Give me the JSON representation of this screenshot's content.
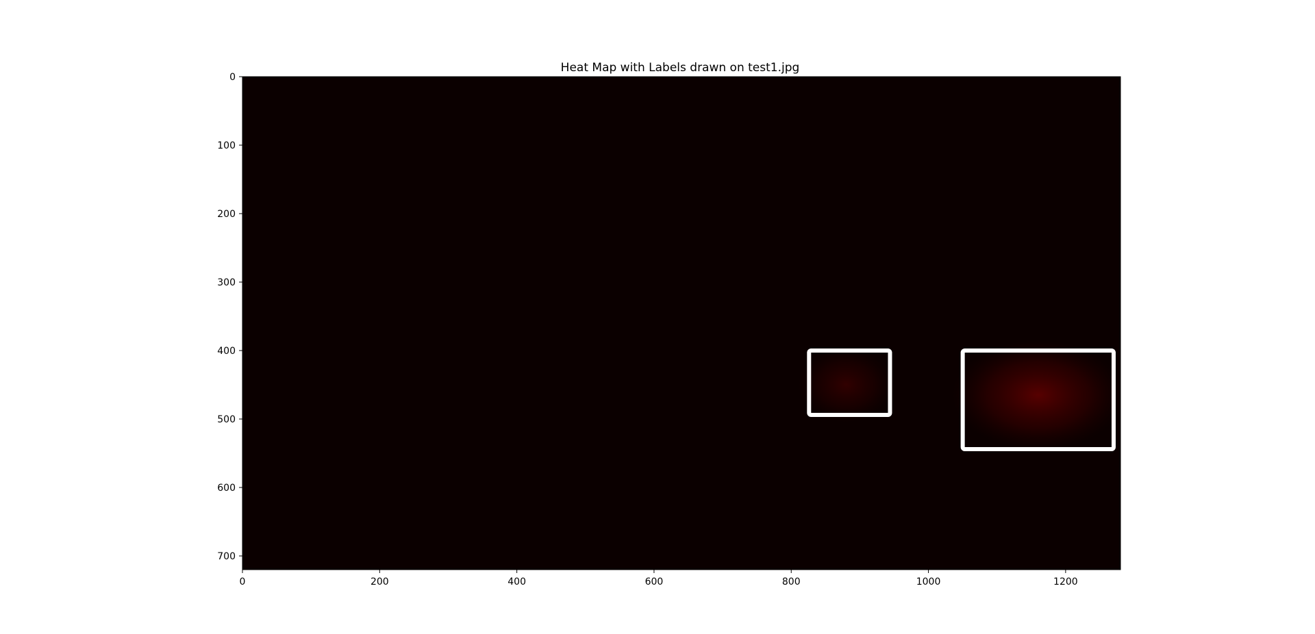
{
  "chart_data": {
    "type": "heatmap",
    "title": "Heat Map with Labels drawn on test1.jpg",
    "xlabel": "",
    "ylabel": "",
    "xlim": [
      0,
      1280
    ],
    "ylim": [
      720,
      0
    ],
    "x_ticks": [
      0,
      200,
      400,
      600,
      800,
      1000,
      1200
    ],
    "y_ticks": [
      0,
      100,
      200,
      300,
      400,
      500,
      600,
      700
    ],
    "background_color": "#0b0000",
    "box_color": "#ffffff",
    "grid": false,
    "hot_regions": [
      {
        "cx": 880,
        "cy": 450,
        "rx": 70,
        "ry": 55,
        "intensity": 0.25
      },
      {
        "cx": 1160,
        "cy": 465,
        "rx": 125,
        "ry": 80,
        "intensity": 0.5
      }
    ],
    "boxes": [
      {
        "x0": 826,
        "y0": 400,
        "x1": 944,
        "y1": 494
      },
      {
        "x0": 1050,
        "y0": 400,
        "x1": 1270,
        "y1": 544
      }
    ]
  }
}
